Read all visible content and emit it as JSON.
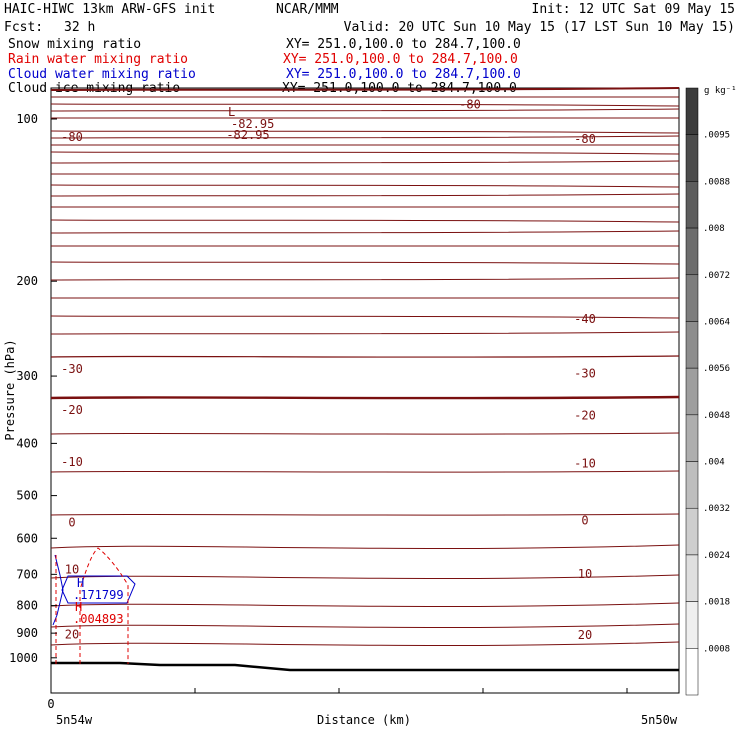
{
  "header": {
    "model": "HAIC-HIWC 13km ARW-GFS init",
    "org": "NCAR/MMM",
    "init": "Init: 12 UTC Sat 09 May 15",
    "fcst_label": "Fcst:",
    "fcst_value": "32 h",
    "valid": "Valid: 20 UTC Sun 10 May 15 (17 LST Sun 10 May 15)"
  },
  "fields": [
    {
      "name": "Snow mixing ratio",
      "xy": "XY= 251.0,100.0 to 284.7,100.0",
      "color": "#000000"
    },
    {
      "name": "Rain water mixing ratio",
      "xy": "XY= 251.0,100.0 to 284.7,100.0",
      "color": "#e00000"
    },
    {
      "name": "Cloud water mixing ratio",
      "xy": "XY= 251.0,100.0 to 284.7,100.0",
      "color": "#0000cc"
    },
    {
      "name": "Cloud ice mixing ratio",
      "xy": "XY= 251.0,100.0 to 284.7,100.0",
      "color": "#000000"
    }
  ],
  "colors": {
    "temperature_contour": "#7a1010",
    "rain": "#e00000",
    "cloud_water": "#0000cc",
    "ground": "#000000"
  },
  "chart_data": {
    "type": "line",
    "ylabel": "Pressure (hPa)",
    "xlabel": "Distance (km)",
    "y_ticks": [
      100,
      200,
      300,
      400,
      500,
      600,
      700,
      800,
      900,
      1000
    ],
    "ylim": [
      1040,
      65
    ],
    "y_scale": "log",
    "x_tick_label": "0",
    "x_left_label": "5n54w",
    "x_right_label": "5n50w",
    "colorbar_unit": "g kg⁻¹",
    "colorbar_ticks": [
      ".0095",
      ".0088",
      ".008",
      ".0072",
      ".0064",
      ".0056",
      ".0048",
      ".004",
      ".0032",
      ".0024",
      ".0018",
      ".0008"
    ],
    "isotherm_labels": [
      {
        "text": "-80",
        "p": 108,
        "side": "left"
      },
      {
        "text": "-82.95",
        "p": 107,
        "side": "center"
      },
      {
        "text": "-80",
        "p": 94,
        "side": "right-top"
      },
      {
        "text": "-80",
        "p": 109,
        "side": "right"
      },
      {
        "text": "-40",
        "p": 235,
        "side": "right"
      },
      {
        "text": "-30",
        "p": 291,
        "side": "left"
      },
      {
        "text": "-30",
        "p": 297,
        "side": "right"
      },
      {
        "text": "-20",
        "p": 347,
        "side": "left"
      },
      {
        "text": "-20",
        "p": 355,
        "side": "right"
      },
      {
        "text": "-10",
        "p": 433,
        "side": "left"
      },
      {
        "text": "-10",
        "p": 436,
        "side": "right"
      },
      {
        "text": "0",
        "p": 561,
        "side": "left"
      },
      {
        "text": "0",
        "p": 556,
        "side": "right"
      },
      {
        "text": "10",
        "p": 686,
        "side": "left"
      },
      {
        "text": "10",
        "p": 699,
        "side": "right"
      },
      {
        "text": "20",
        "p": 905,
        "side": "left"
      },
      {
        "text": "20",
        "p": 908,
        "side": "right"
      }
    ],
    "low_marker": {
      "label": "L",
      "value": "-82.95"
    },
    "cloud_water_max": {
      "label": "H",
      "value": ".171799"
    },
    "rain_max": {
      "label": "H",
      "value": ".004893"
    }
  }
}
